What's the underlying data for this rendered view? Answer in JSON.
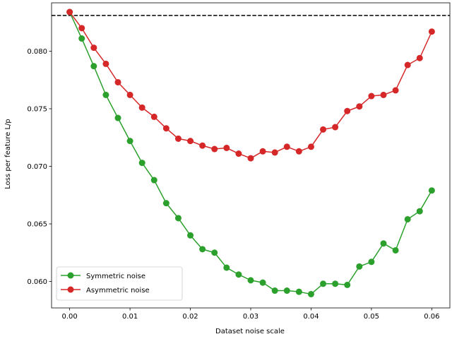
{
  "chart_data": {
    "type": "line",
    "title": "",
    "xlabel": "Dataset noise scale",
    "ylabel": "Loss per feature L/p",
    "xlim": [
      -0.003,
      0.063
    ],
    "ylim": [
      0.0577,
      0.0842
    ],
    "xticks": [
      0.0,
      0.01,
      0.02,
      0.03,
      0.04,
      0.05,
      0.06
    ],
    "xtick_labels": [
      "0.00",
      "0.01",
      "0.02",
      "0.03",
      "0.04",
      "0.05",
      "0.06"
    ],
    "yticks": [
      0.06,
      0.065,
      0.07,
      0.075,
      0.08
    ],
    "ytick_labels": [
      "0.060",
      "0.065",
      "0.070",
      "0.075",
      "0.080"
    ],
    "grid": false,
    "legend_position": "lower-left",
    "reference_line": {
      "y": 0.0831,
      "style": "dashed",
      "color": "#000000"
    },
    "x": [
      0.0,
      0.002,
      0.004,
      0.006,
      0.008,
      0.01,
      0.012,
      0.014,
      0.016,
      0.018,
      0.02,
      0.022,
      0.024,
      0.026,
      0.028,
      0.03,
      0.032,
      0.034,
      0.036,
      0.038,
      0.04,
      0.042,
      0.044,
      0.046,
      0.048,
      0.05,
      0.052,
      0.054,
      0.056,
      0.058,
      0.06
    ],
    "series": [
      {
        "name": "Symmetric noise",
        "color": "#2ca02c",
        "values": [
          0.0834,
          0.0811,
          0.0787,
          0.0762,
          0.0742,
          0.0722,
          0.0703,
          0.0688,
          0.0668,
          0.0655,
          0.064,
          0.0628,
          0.0625,
          0.0612,
          0.0606,
          0.0601,
          0.0599,
          0.0592,
          0.0592,
          0.0591,
          0.0589,
          0.0598,
          0.0598,
          0.0597,
          0.0613,
          0.0617,
          0.0633,
          0.0627,
          0.0654,
          0.0661,
          0.0679
        ]
      },
      {
        "name": "Asymmetric noise",
        "color": "#d62728",
        "values": [
          0.0834,
          0.082,
          0.0803,
          0.0789,
          0.0773,
          0.0762,
          0.0751,
          0.0743,
          0.0733,
          0.0724,
          0.0722,
          0.0718,
          0.0715,
          0.0716,
          0.0711,
          0.0707,
          0.0713,
          0.0712,
          0.0717,
          0.0713,
          0.0717,
          0.0732,
          0.0734,
          0.0748,
          0.0752,
          0.0761,
          0.0762,
          0.0766,
          0.0788,
          0.0794,
          0.0817
        ]
      }
    ]
  }
}
